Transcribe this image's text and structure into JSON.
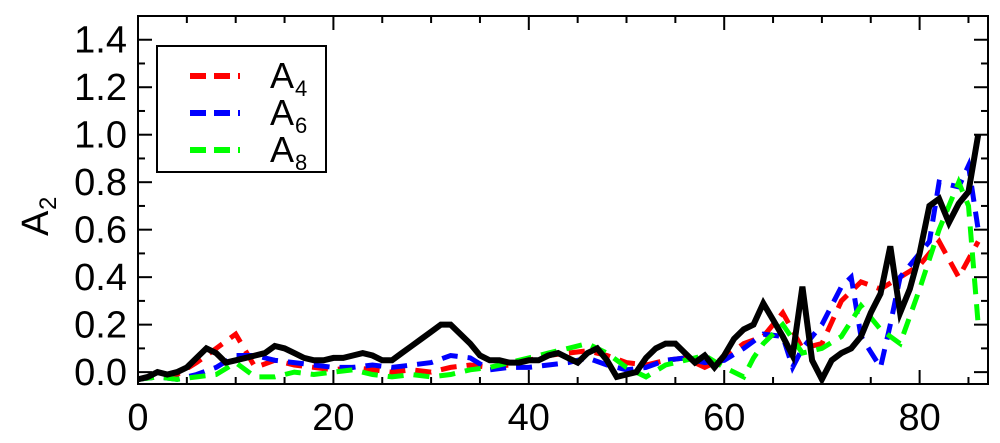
{
  "chart_data": {
    "type": "line",
    "xlabel": "",
    "ylabel": "A",
    "ylabel_subscript": "2",
    "xlim": [
      0,
      87
    ],
    "ylim": [
      -0.05,
      1.5
    ],
    "x_ticks": [
      0,
      20,
      40,
      60,
      80
    ],
    "x_tick_labels": [
      "0",
      "20",
      "40",
      "60",
      "80"
    ],
    "y_ticks": [
      0.0,
      0.2,
      0.4,
      0.6,
      0.8,
      1.0,
      1.2,
      1.4
    ],
    "y_tick_labels": [
      "0.0",
      "0.2",
      "0.4",
      "0.6",
      "0.8",
      "1.0",
      "1.2",
      "1.4"
    ],
    "grid": false,
    "legend_position": "top-left",
    "legend": [
      {
        "label": "A",
        "subscript": "4",
        "color": "#ff0000",
        "dashed": true
      },
      {
        "label": "A",
        "subscript": "6",
        "color": "#0000ff",
        "dashed": true
      },
      {
        "label": "A",
        "subscript": "8",
        "color": "#00ff00",
        "dashed": true
      }
    ],
    "series": [
      {
        "color": "#000000",
        "dashed": false,
        "width": 6,
        "x": [
          0,
          1,
          2,
          3,
          4,
          5,
          6,
          7,
          8,
          9,
          10,
          11,
          12,
          13,
          14,
          15,
          16,
          17,
          18,
          19,
          20,
          21,
          22,
          23,
          24,
          25,
          26,
          27,
          28,
          29,
          30,
          31,
          32,
          33,
          34,
          35,
          36,
          37,
          38,
          39,
          40,
          41,
          42,
          43,
          44,
          45,
          46,
          47,
          48,
          49,
          50,
          51,
          52,
          53,
          54,
          55,
          56,
          57,
          58,
          59,
          60,
          61,
          62,
          63,
          64,
          65,
          66,
          67,
          68,
          69,
          70,
          71,
          72,
          73,
          74,
          75,
          76,
          77,
          78,
          79,
          80,
          81,
          82,
          83,
          84,
          85,
          86
        ],
        "values": [
          -0.03,
          -0.02,
          0.0,
          -0.01,
          0.0,
          0.02,
          0.06,
          0.1,
          0.08,
          0.04,
          0.05,
          0.06,
          0.07,
          0.08,
          0.11,
          0.1,
          0.08,
          0.06,
          0.05,
          0.05,
          0.06,
          0.06,
          0.07,
          0.08,
          0.07,
          0.05,
          0.05,
          0.08,
          0.11,
          0.14,
          0.17,
          0.2,
          0.2,
          0.16,
          0.12,
          0.07,
          0.05,
          0.05,
          0.04,
          0.04,
          0.05,
          0.05,
          0.07,
          0.08,
          0.06,
          0.04,
          0.08,
          0.1,
          0.05,
          -0.02,
          -0.01,
          0.0,
          0.06,
          0.1,
          0.12,
          0.12,
          0.08,
          0.04,
          0.07,
          0.02,
          0.07,
          0.14,
          0.18,
          0.2,
          0.29,
          0.22,
          0.15,
          0.07,
          0.36,
          0.05,
          -0.03,
          0.05,
          0.08,
          0.1,
          0.15,
          0.25,
          0.33,
          0.53,
          0.25,
          0.35,
          0.5,
          0.7,
          0.73,
          0.63,
          0.71,
          0.76,
          1.0
        ]
      },
      {
        "color": "#ff0000",
        "dashed": true,
        "width": 5,
        "x": [
          0,
          2,
          4,
          6,
          8,
          10,
          12,
          14,
          16,
          18,
          20,
          22,
          24,
          26,
          28,
          30,
          32,
          34,
          36,
          38,
          40,
          42,
          44,
          46,
          48,
          50,
          52,
          54,
          56,
          58,
          60,
          62,
          64,
          66,
          68,
          70,
          72,
          74,
          76,
          78,
          80,
          82,
          84,
          86
        ],
        "values": [
          -0.03,
          -0.02,
          -0.01,
          0.04,
          0.1,
          0.16,
          0.02,
          0.05,
          0.03,
          0.02,
          0.01,
          0.02,
          0.01,
          0.0,
          0.01,
          0.0,
          0.02,
          0.03,
          0.02,
          0.03,
          0.05,
          0.07,
          0.08,
          0.09,
          0.07,
          0.04,
          0.03,
          0.05,
          0.06,
          0.02,
          0.06,
          0.12,
          0.15,
          0.25,
          0.1,
          0.12,
          0.3,
          0.38,
          0.35,
          0.4,
          0.45,
          0.55,
          0.4,
          0.55
        ]
      },
      {
        "color": "#0000ff",
        "dashed": true,
        "width": 5,
        "x": [
          0,
          2,
          4,
          6,
          8,
          10,
          12,
          14,
          16,
          18,
          20,
          22,
          24,
          26,
          28,
          30,
          32,
          34,
          36,
          38,
          40,
          42,
          44,
          46,
          48,
          50,
          52,
          54,
          56,
          58,
          60,
          62,
          64,
          66,
          67,
          68,
          70,
          72,
          73,
          74,
          76,
          77,
          78,
          80,
          81,
          82,
          84,
          85,
          86
        ],
        "values": [
          -0.03,
          -0.02,
          -0.03,
          -0.01,
          0.02,
          0.07,
          0.07,
          0.05,
          0.04,
          0.03,
          0.02,
          0.02,
          0.03,
          0.02,
          0.03,
          0.04,
          0.07,
          0.06,
          0.01,
          0.02,
          0.02,
          0.03,
          0.04,
          0.06,
          0.03,
          0.01,
          0.02,
          0.05,
          0.06,
          0.04,
          0.05,
          0.1,
          0.16,
          0.15,
          0.02,
          0.1,
          0.2,
          0.36,
          0.4,
          0.15,
          0.02,
          0.2,
          0.4,
          0.5,
          0.55,
          0.8,
          0.78,
          0.87,
          0.6
        ]
      },
      {
        "color": "#00ff00",
        "dashed": true,
        "width": 5,
        "x": [
          0,
          2,
          4,
          6,
          8,
          10,
          12,
          14,
          16,
          18,
          20,
          22,
          24,
          26,
          28,
          30,
          32,
          34,
          36,
          38,
          40,
          42,
          44,
          46,
          48,
          50,
          52,
          54,
          56,
          58,
          60,
          62,
          63,
          64,
          66,
          68,
          70,
          72,
          74,
          76,
          78,
          80,
          82,
          84,
          85,
          86
        ],
        "values": [
          -0.03,
          -0.02,
          -0.03,
          -0.02,
          -0.01,
          0.04,
          -0.02,
          -0.02,
          0.0,
          -0.01,
          0.0,
          0.01,
          -0.01,
          -0.02,
          -0.01,
          -0.02,
          -0.01,
          0.01,
          0.02,
          0.04,
          0.06,
          0.08,
          0.1,
          0.12,
          0.08,
          0.02,
          -0.02,
          0.03,
          0.05,
          0.07,
          0.02,
          -0.02,
          0.06,
          0.12,
          0.2,
          0.08,
          0.1,
          0.15,
          0.28,
          0.18,
          0.12,
          0.35,
          0.6,
          0.8,
          0.7,
          0.2
        ]
      }
    ]
  }
}
